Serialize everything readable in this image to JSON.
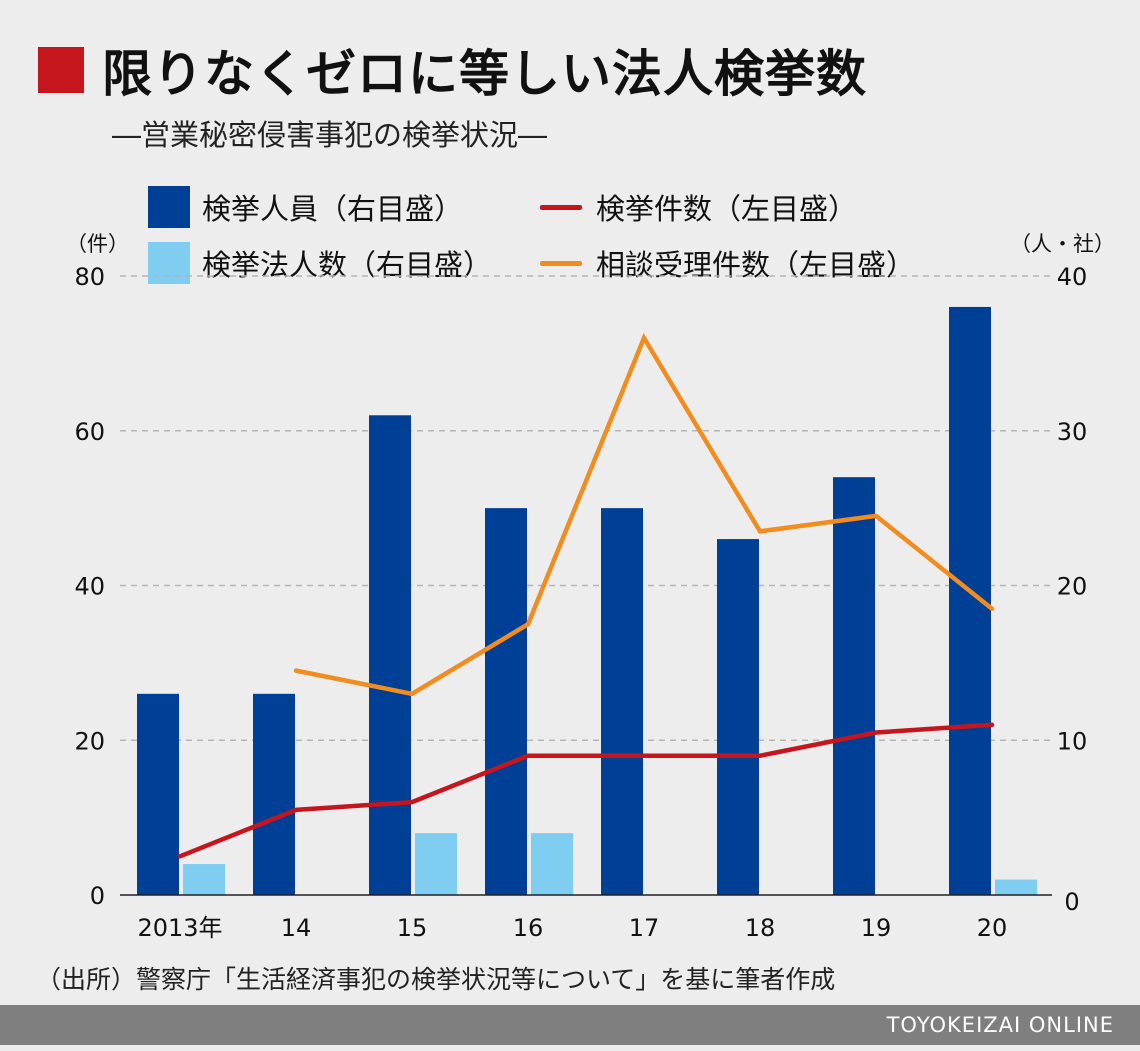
{
  "title": "限りなくゼロに等しい法人検挙数",
  "subtitle": "―営業秘密侵害事犯の検挙状況―",
  "colors": {
    "accent_square": "#c4161c",
    "arrested_persons": "#003f96",
    "arrested_corporations": "#7fcdf0",
    "cases": "#c4161c",
    "consultations": "#f28c1e"
  },
  "legend": {
    "arrested_persons": "検挙人員（右目盛）",
    "cases": "検挙件数（左目盛）",
    "arrested_corporations": "検挙法人数（右目盛）",
    "consultations": "相談受理件数（左目盛）"
  },
  "unit_left": "（件）",
  "unit_right": "（人・社）",
  "source": "（出所）警察庁「生活経済事犯の検挙状況等について」を基に筆者作成",
  "footer": "TOYOKEIZAI ONLINE",
  "chart_data": {
    "type": "bar",
    "categories": [
      "2013年",
      "14",
      "15",
      "16",
      "17",
      "18",
      "19",
      "20"
    ],
    "left_axis": {
      "ylim": [
        0,
        80
      ],
      "ticks": [
        0,
        20,
        40,
        60,
        80
      ],
      "tick_labels": [
        "0",
        "20",
        "40",
        "60",
        "80"
      ]
    },
    "right_axis": {
      "ylim": [
        0,
        40
      ],
      "ticks": [
        0,
        10,
        20,
        30,
        40
      ],
      "tick_labels": [
        "0",
        "10",
        "20",
        "30",
        "40"
      ]
    },
    "grid": "dashed horizontal",
    "series": [
      {
        "name": "検挙人員（右目盛）",
        "type": "bar",
        "axis": "right",
        "values": [
          13,
          13,
          31,
          25,
          25,
          23,
          27,
          38
        ]
      },
      {
        "name": "検挙法人数（右目盛）",
        "type": "bar",
        "axis": "right",
        "values": [
          2,
          0,
          4,
          4,
          0,
          0,
          0,
          1
        ]
      },
      {
        "name": "検挙件数（左目盛）",
        "type": "line",
        "axis": "left",
        "values": [
          5,
          11,
          12,
          18,
          18,
          18,
          21,
          22
        ]
      },
      {
        "name": "相談受理件数（左目盛）",
        "type": "line",
        "axis": "left",
        "values": [
          null,
          29,
          26,
          35,
          72,
          47,
          49,
          37
        ]
      }
    ]
  }
}
